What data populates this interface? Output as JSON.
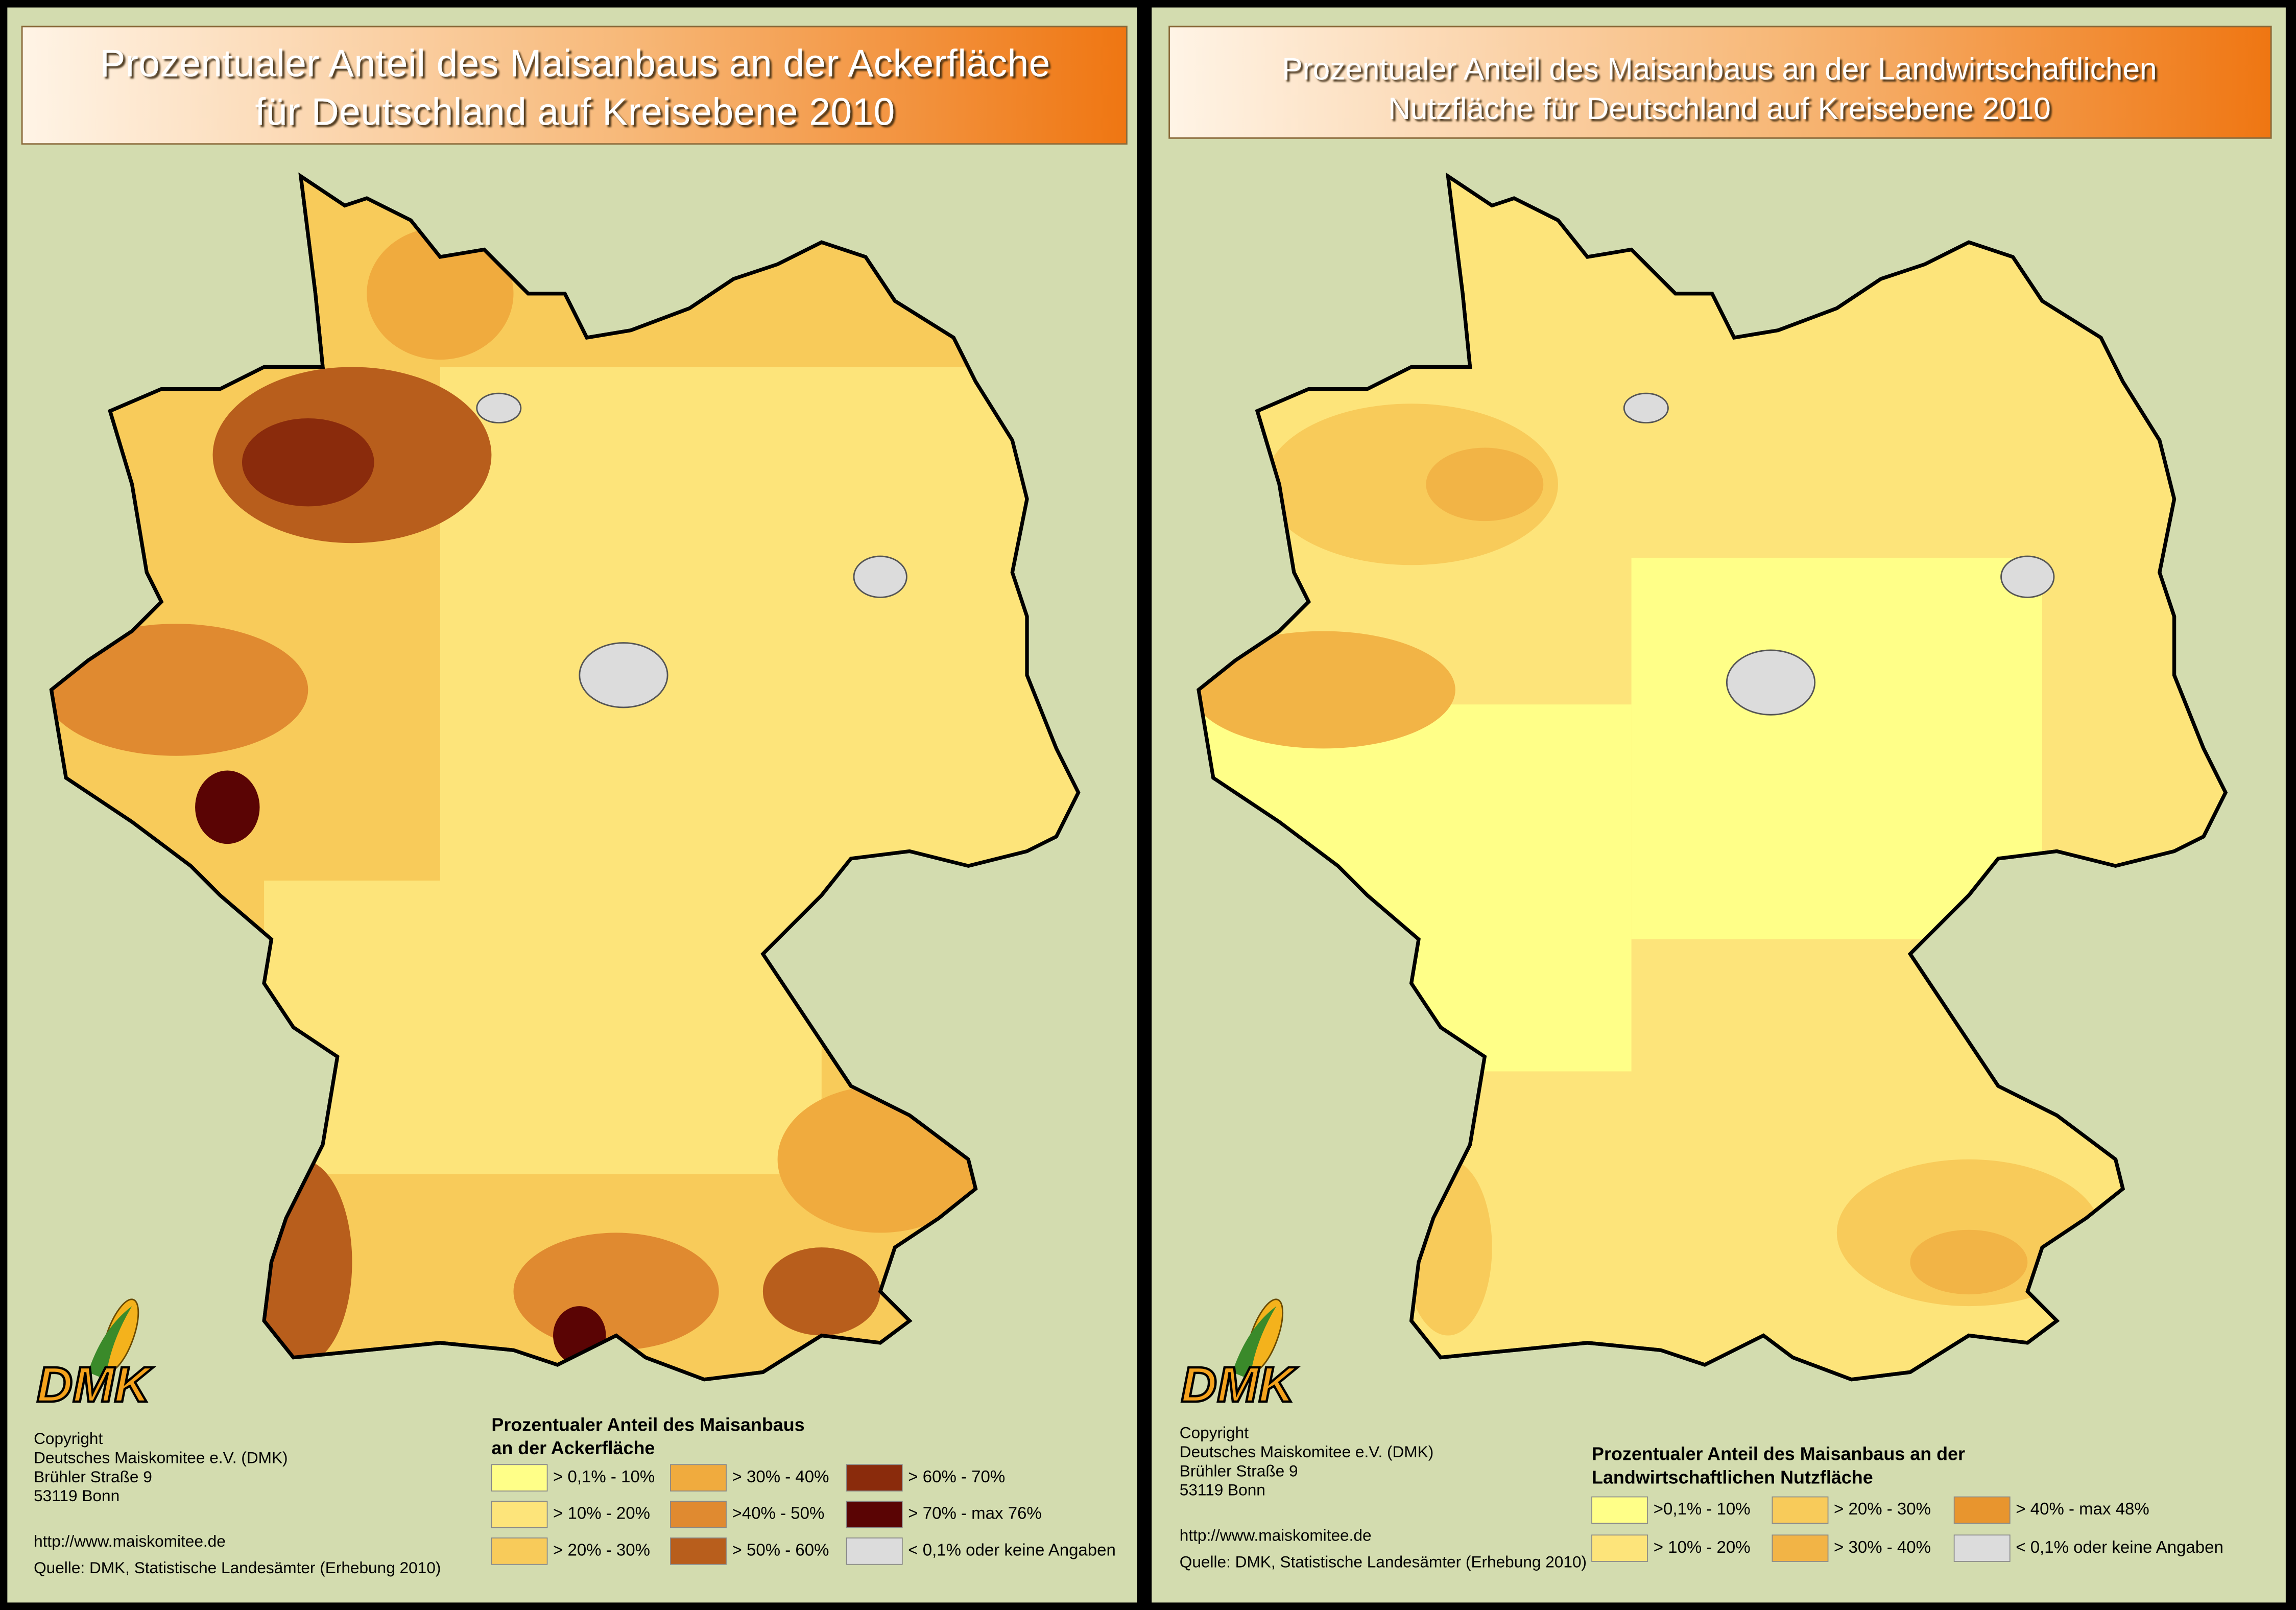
{
  "panels": [
    {
      "title": [
        "Prozentualer Anteil des Maisanbaus an der Ackerfläche",
        "für Deutschland auf Kreisebene 2010"
      ],
      "logo": "DMK",
      "copyright": [
        "Copyright",
        "Deutsches Maiskomitee e.V. (DMK)",
        "Brühler Straße 9",
        "53119 Bonn"
      ],
      "url": "http://www.maiskomitee.de",
      "source": "Quelle: DMK, Statistische Landesämter (Erhebung 2010)",
      "legend": {
        "title": [
          "Prozentualer Anteil des Maisanbaus",
          "an der Ackerfläche"
        ],
        "items": [
          "> 0,1% - 10%",
          "> 10% - 20%",
          "> 20% - 30%",
          "> 30% - 40%",
          ">40% - 50%",
          "> 50% - 60%",
          "> 60% - 70%",
          "> 70% - max 76%",
          "< 0,1% oder keine Angaben"
        ]
      }
    },
    {
      "title": [
        "Prozentualer Anteil des Maisanbaus an der Landwirtschaftlichen",
        "Nutzfläche  für Deutschland auf Kreisebene 2010"
      ],
      "logo": "DMK",
      "copyright": [
        "Copyright",
        "Deutsches Maiskomitee e.V. (DMK)",
        "Brühler Straße 9",
        "53119 Bonn"
      ],
      "url": "http://www.maiskomitee.de",
      "source": "Quelle: DMK, Statistische Landesämter (Erhebung 2010)",
      "legend": {
        "title": [
          "Prozentualer Anteil des Maisanbaus an der",
          "Landwirtschaftlichen Nutzfläche"
        ],
        "items": [
          ">0,1% - 10%",
          "> 10% - 20%",
          "> 20% - 30%",
          "> 30% - 40%",
          "> 40% - max 48%",
          "< 0,1% oder keine Angaben"
        ]
      }
    }
  ]
}
